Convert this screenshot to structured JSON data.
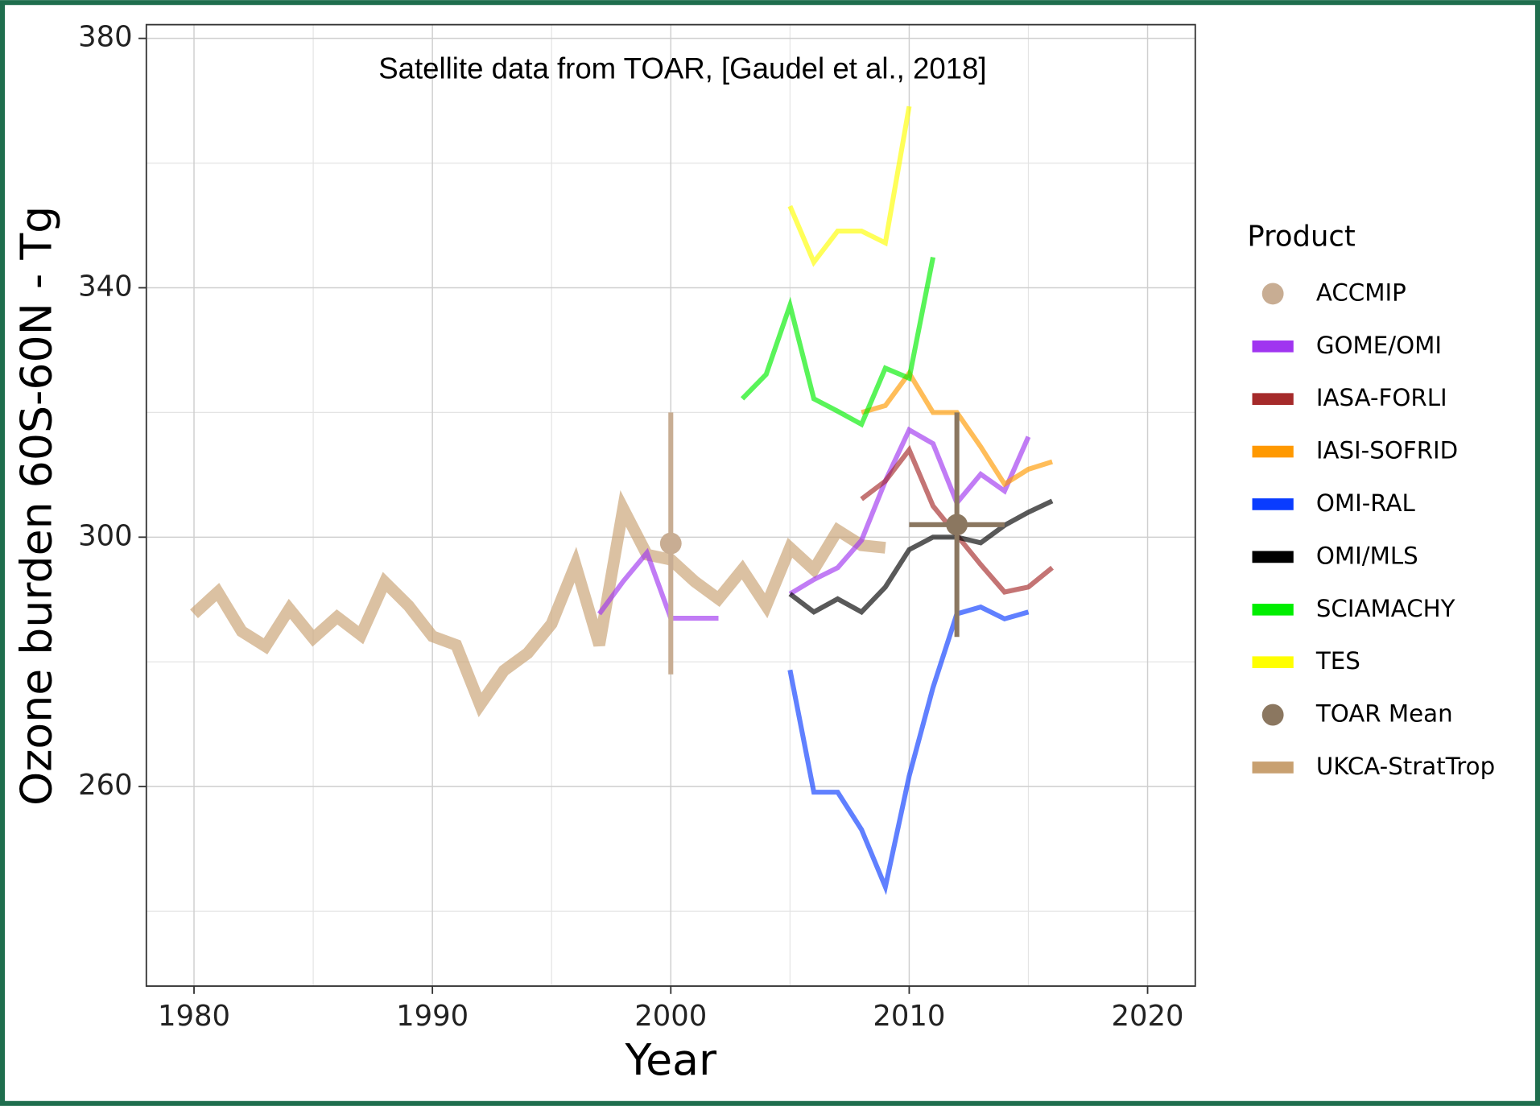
{
  "chart_data": {
    "type": "line",
    "annotation": "Satellite data from TOAR, [Gaudel et al., 2018]",
    "x_label": "Year",
    "y_label": "Ozone burden 60S-60N -  Tg",
    "legend_title": "Product",
    "legend_position": "right",
    "grid": true,
    "line_opacity": 0.65,
    "xlim": [
      1978,
      2022
    ],
    "xticks": [
      1980,
      1990,
      2000,
      2010,
      2020
    ],
    "x_minor_gridlines": [
      1985,
      1995,
      2005,
      2015
    ],
    "ylim": [
      228,
      382.2
    ],
    "yticks": [
      260,
      300,
      340,
      380
    ],
    "y_minor_gridlines": [
      240,
      280,
      320,
      360
    ],
    "series": [
      {
        "name": "ACCMIP",
        "type": "point",
        "color": "#c8ad93",
        "x": [
          2000
        ],
        "values": [
          299
        ],
        "error": [
          21
        ]
      },
      {
        "name": "GOME/OMI",
        "type": "line",
        "color": "#a035f0",
        "line_width": 5,
        "x": [
          1997,
          1998,
          1999,
          2000,
          2001,
          2002,
          2003,
          2004,
          2005,
          2006,
          2007,
          2008,
          2009,
          2010,
          2011,
          2012,
          2013,
          2014,
          2015
        ],
        "values": [
          287.7,
          292.9,
          297.5,
          287,
          287,
          287,
          null,
          null,
          290.9,
          293.2,
          295.1,
          299.5,
          309,
          317.2,
          315,
          305.5,
          310.1,
          307.4,
          316.1
        ]
      },
      {
        "name": "IASA-FORLI",
        "type": "line",
        "color": "#a52a2a",
        "line_width": 5,
        "x": [
          2008,
          2009,
          2010,
          2011,
          2012,
          2013,
          2014,
          2015,
          2016
        ],
        "values": [
          306.1,
          309,
          314,
          305,
          300.3,
          295.6,
          291.2,
          292,
          295.1
        ]
      },
      {
        "name": "IASI-SOFRID",
        "type": "line",
        "color": "#ff9900",
        "line_width": 5,
        "x": [
          2008,
          2009,
          2010,
          2011,
          2012,
          2013,
          2014,
          2015,
          2016
        ],
        "values": [
          320,
          321.1,
          326.3,
          320,
          320,
          314.5,
          308.5,
          310.9,
          312.1
        ]
      },
      {
        "name": "OMI-RAL",
        "type": "line",
        "color": "#0a3cff",
        "line_width": 5,
        "x": [
          2005,
          2006,
          2007,
          2008,
          2009,
          2010,
          2011,
          2012,
          2013,
          2014,
          2015
        ],
        "values": [
          278.7,
          259.1,
          259.1,
          253.1,
          243.9,
          261.7,
          275.9,
          287.7,
          288.8,
          286.9,
          288
        ]
      },
      {
        "name": "OMI/MLS",
        "type": "line",
        "color": "#000000",
        "line_width": 5,
        "x": [
          2005,
          2006,
          2007,
          2008,
          2009,
          2010,
          2011,
          2012,
          2013,
          2014,
          2015,
          2016
        ],
        "values": [
          290.9,
          288,
          290.1,
          288,
          292,
          298,
          300,
          300,
          299.1,
          301.9,
          304,
          305.8
        ]
      },
      {
        "name": "SCIAMACHY",
        "type": "line",
        "color": "#00ee00",
        "line_width": 5,
        "x": [
          2003,
          2004,
          2005,
          2006,
          2007,
          2008,
          2009,
          2010,
          2011
        ],
        "values": [
          322.2,
          326.1,
          337.2,
          322.2,
          320.2,
          318.1,
          327.1,
          325.5,
          344.9
        ]
      },
      {
        "name": "TES",
        "type": "line",
        "color": "#ffff00",
        "line_width": 5,
        "x": [
          2005,
          2006,
          2007,
          2008,
          2009,
          2010
        ],
        "values": [
          353.1,
          344.1,
          349.1,
          349.1,
          347.2,
          369.1
        ]
      },
      {
        "name": "TOAR Mean",
        "type": "point",
        "color": "#8b7760",
        "x": [
          2012
        ],
        "values": [
          302
        ],
        "error": [
          18
        ],
        "x_error": [
          2
        ]
      },
      {
        "name": "UKCA-StratTrop",
        "type": "line",
        "color": "#c8a070",
        "line_width": 12,
        "x": [
          1980,
          1981,
          1982,
          1983,
          1984,
          1985,
          1986,
          1987,
          1988,
          1989,
          1990,
          1991,
          1992,
          1993,
          1994,
          1995,
          1996,
          1997,
          1998,
          1999,
          2000,
          2001,
          2002,
          2003,
          2004,
          2005,
          2006,
          2007,
          2008,
          2009
        ],
        "values": [
          287.7,
          291.2,
          284.9,
          282.5,
          288.5,
          283.8,
          287.2,
          284.3,
          292.8,
          289,
          284.1,
          282.7,
          273.1,
          278.6,
          281.4,
          286.1,
          295.6,
          282.7,
          304.6,
          297.2,
          296.4,
          292.9,
          290.1,
          294.8,
          289,
          298.3,
          294.8,
          301.1,
          298.7,
          298.3
        ]
      }
    ]
  }
}
